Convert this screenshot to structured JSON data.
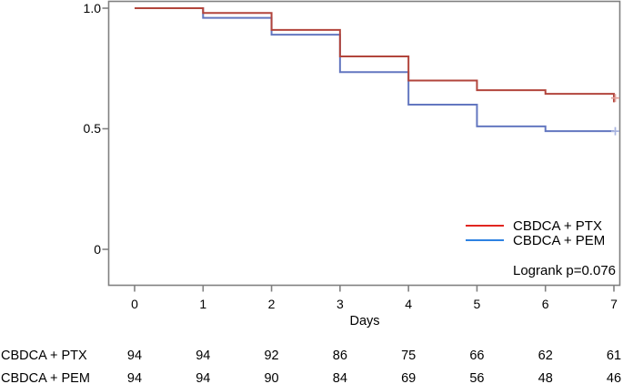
{
  "figure": {
    "y_axis": {
      "tick_labels": [
        "1.0",
        "0.5",
        "0"
      ],
      "tick_values": [
        1.0,
        0.5,
        0
      ]
    },
    "x_axis": {
      "title": "Days",
      "tick_labels": [
        "0",
        "1",
        "2",
        "3",
        "4",
        "5",
        "6",
        "7"
      ],
      "tick_values": [
        0,
        1,
        2,
        3,
        4,
        5,
        6,
        7
      ]
    },
    "legend": {
      "items": [
        {
          "label": "CBDCA + PTX",
          "color": "#e02620"
        },
        {
          "label": "CBDCA + PEM",
          "color": "#2e82e2"
        }
      ]
    },
    "annotation": "Logrank p=0.076"
  },
  "chart_data": {
    "type": "line",
    "subtype": "kaplan-meier-step",
    "title": "",
    "xlabel": "Days",
    "ylabel": "",
    "xlim": [
      0,
      7
    ],
    "ylim": [
      0,
      1.0
    ],
    "grid": false,
    "legend_position": "lower right",
    "annotation": "Logrank p=0.076",
    "x": [
      0,
      1,
      2,
      3,
      4,
      5,
      6,
      7
    ],
    "series": [
      {
        "name": "CBDCA + PTX",
        "color": "#b2453c",
        "censor_color": "#e2a49e",
        "values": [
          1.0,
          0.98,
          0.91,
          0.8,
          0.7,
          0.66,
          0.645,
          0.61
        ],
        "censored_at_end": true
      },
      {
        "name": "CBDCA + PEM",
        "color": "#6377c0",
        "censor_color": "#a6b2de",
        "values": [
          1.0,
          0.96,
          0.89,
          0.735,
          0.6,
          0.51,
          0.49,
          0.49
        ],
        "censored_at_end": true
      }
    ]
  },
  "risk_table": {
    "rows": [
      {
        "label": "CBDCA + PTX",
        "counts": [
          "94",
          "94",
          "92",
          "86",
          "75",
          "66",
          "62",
          "61"
        ]
      },
      {
        "label": "CBDCA + PEM",
        "counts": [
          "94",
          "94",
          "90",
          "84",
          "69",
          "56",
          "48",
          "46"
        ]
      }
    ]
  },
  "colors": {
    "axis": "#808080",
    "text": "#000000"
  }
}
